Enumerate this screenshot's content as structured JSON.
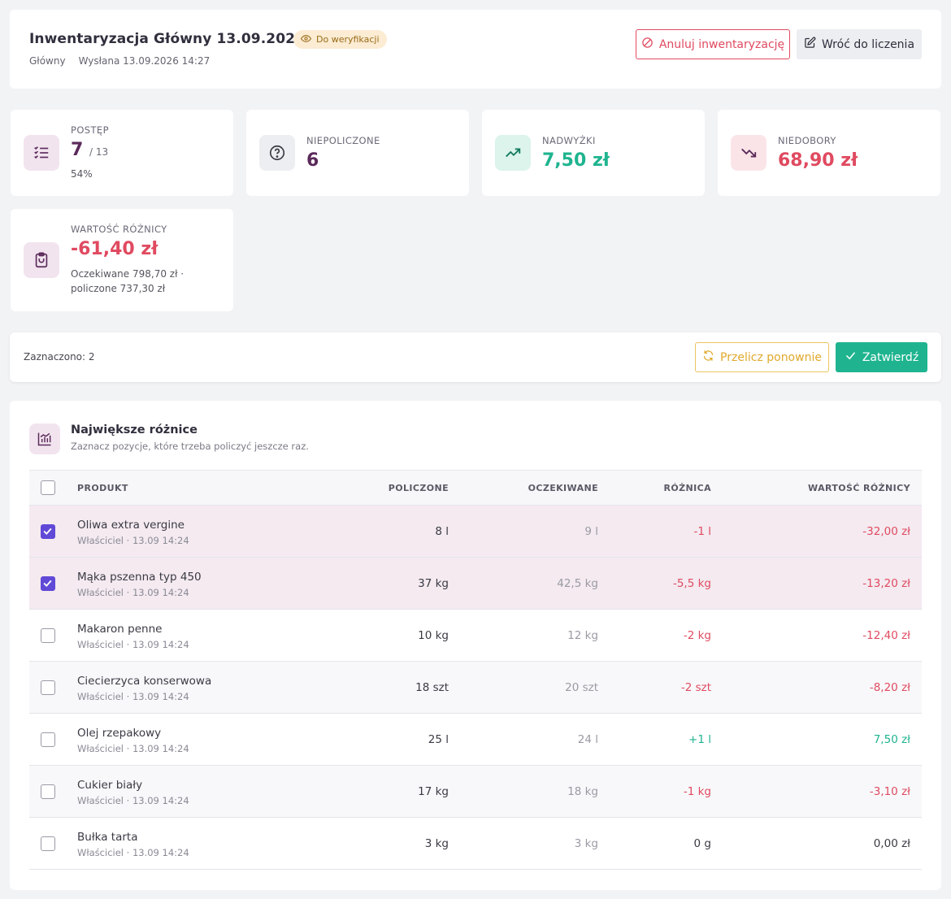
{
  "header": {
    "title": "Inwentaryzacja Główny 13.09.2026",
    "status": "Do weryfikacji",
    "location": "Główny",
    "sent": "Wysłana 13.09.2026 14:27",
    "cancel_label": "Anuluj inwentaryzację",
    "back_label": "Wróć do liczenia"
  },
  "stats": {
    "progress": {
      "label": "POSTĘP",
      "value": "7",
      "total": "/ 13",
      "percent": "54%"
    },
    "uncounted": {
      "label": "NIEPOLICZONE",
      "value": "6"
    },
    "surplus": {
      "label": "NADWYŻKI",
      "value": "7,50 zł"
    },
    "shortage": {
      "label": "NIEDOBORY",
      "value": "68,90 zł"
    },
    "diff_value": {
      "label": "WARTOŚĆ RÓŻNICY",
      "value": "-61,40 zł",
      "note_line1": "Oczekiwane 798,70 zł ·",
      "note_line2": "policzone 737,30 zł"
    }
  },
  "colors": {
    "accent": "#6049d6",
    "positive": "#1fb48f",
    "negative": "#e04a60",
    "brand": "#5a2a5a"
  },
  "action_bar": {
    "selected": "Zaznaczono: 2",
    "recalc_label": "Przelicz ponownie",
    "confirm_label": "Zatwierdź"
  },
  "table": {
    "title": "Największe różnice",
    "subtitle": "Zaznacz pozycje, które trzeba policzyć jeszcze raz.",
    "columns": {
      "product": "PRODUKT",
      "counted": "POLICZONE",
      "expected": "OCZEKIWANE",
      "diff": "RÓŻNICA",
      "value": "WARTOŚĆ RÓŻNICY"
    },
    "rows": [
      {
        "name": "Oliwa extra vergine",
        "meta": "Właściciel · 13.09 14:24",
        "counted": "8 l",
        "expected": "9 l",
        "diff": "-1 l",
        "value": "-32,00 zł",
        "checked": true,
        "sign": "neg"
      },
      {
        "name": "Mąka pszenna typ 450",
        "meta": "Właściciel · 13.09 14:24",
        "counted": "37 kg",
        "expected": "42,5 kg",
        "diff": "-5,5 kg",
        "value": "-13,20 zł",
        "checked": true,
        "sign": "neg"
      },
      {
        "name": "Makaron penne",
        "meta": "Właściciel · 13.09 14:24",
        "counted": "10 kg",
        "expected": "12 kg",
        "diff": "-2 kg",
        "value": "-12,40 zł",
        "checked": false,
        "sign": "neg"
      },
      {
        "name": "Ciecierzyca konserwowa",
        "meta": "Właściciel · 13.09 14:24",
        "counted": "18 szt",
        "expected": "20 szt",
        "diff": "-2 szt",
        "value": "-8,20 zł",
        "checked": false,
        "sign": "neg"
      },
      {
        "name": "Olej rzepakowy",
        "meta": "Właściciel · 13.09 14:24",
        "counted": "25 l",
        "expected": "24 l",
        "diff": "+1 l",
        "value": "7,50 zł",
        "checked": false,
        "sign": "pos"
      },
      {
        "name": "Cukier biały",
        "meta": "Właściciel · 13.09 14:24",
        "counted": "17 kg",
        "expected": "18 kg",
        "diff": "-1 kg",
        "value": "-3,10 zł",
        "checked": false,
        "sign": "neg"
      },
      {
        "name": "Bułka tarta",
        "meta": "Właściciel · 13.09 14:24",
        "counted": "3 kg",
        "expected": "3 kg",
        "diff": "0 g",
        "value": "0,00 zł",
        "checked": false,
        "sign": "zero"
      }
    ]
  }
}
